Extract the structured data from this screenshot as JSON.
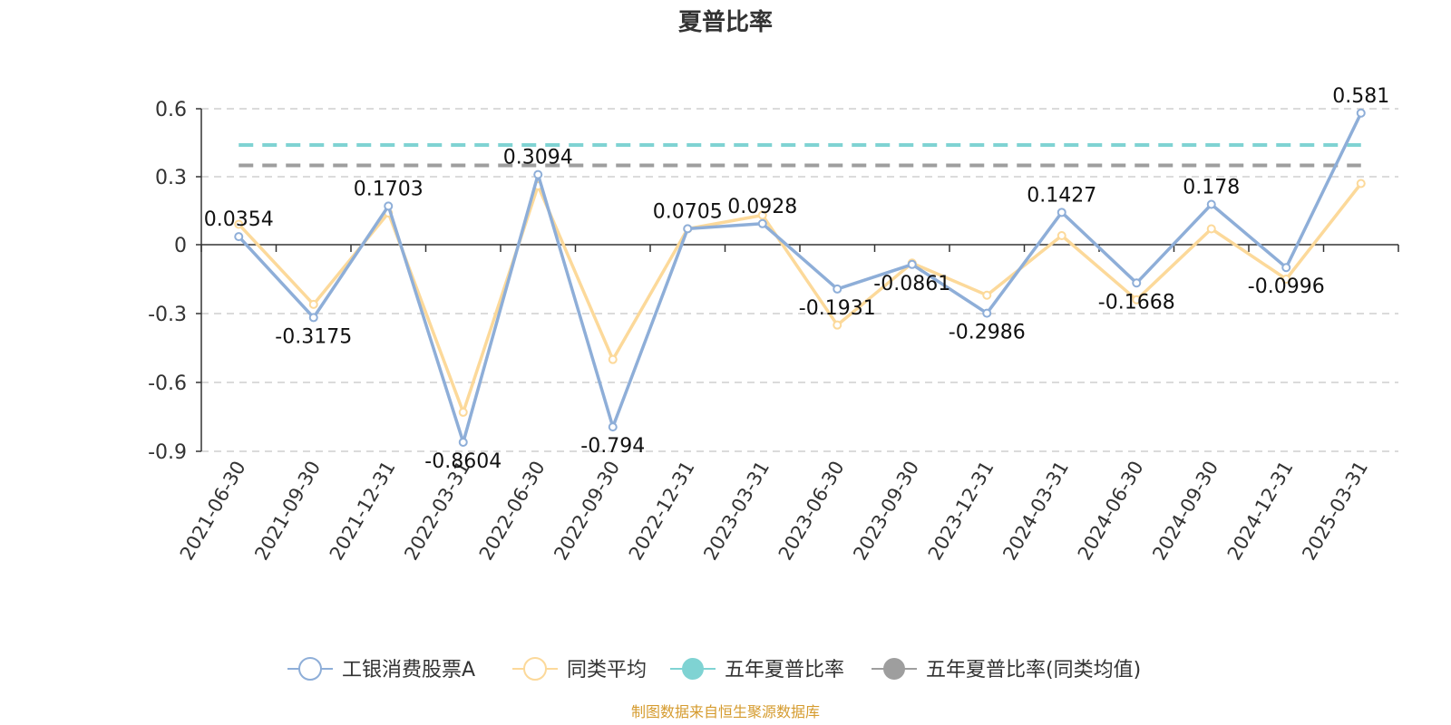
{
  "chart_data": {
    "type": "line",
    "title": "夏普比率",
    "xlabel": "",
    "ylabel": "",
    "categories": [
      "2021-06-30",
      "2021-09-30",
      "2021-12-31",
      "2022-03-31",
      "2022-06-30",
      "2022-09-30",
      "2022-12-31",
      "2023-03-31",
      "2023-06-30",
      "2023-09-30",
      "2023-12-31",
      "2024-03-31",
      "2024-06-30",
      "2024-09-30",
      "2024-12-31",
      "2025-03-31"
    ],
    "ylim": [
      -0.9,
      0.6
    ],
    "yticks": [
      "0.6",
      "0.3",
      "0",
      "-0.3",
      "-0.6",
      "-0.9"
    ],
    "ytick_values": [
      0.6,
      0.3,
      0,
      -0.3,
      -0.6,
      -0.9
    ],
    "grid": "horizontal dashed",
    "legend_position": "bottom",
    "series": [
      {
        "name": "工银消费股票A",
        "color": "#8eaed8",
        "values": [
          0.0354,
          -0.3175,
          0.1703,
          -0.8604,
          0.3094,
          -0.794,
          0.0705,
          0.0928,
          -0.1931,
          -0.0861,
          -0.2986,
          0.1427,
          -0.1668,
          0.178,
          -0.0996,
          0.581
        ],
        "labels": [
          "0.0354",
          "-0.3175",
          "0.1703",
          "-0.8604",
          "0.3094",
          "-0.794",
          "0.0705",
          "0.0928",
          "-0.1931",
          "-0.0861",
          "-0.2986",
          "0.1427",
          "-0.1668",
          "0.178",
          "-0.0996",
          "0.581"
        ]
      },
      {
        "name": "同类平均",
        "color": "#fcd99a",
        "values": [
          0.09,
          -0.26,
          0.14,
          -0.73,
          0.26,
          -0.5,
          0.07,
          0.13,
          -0.35,
          -0.08,
          -0.22,
          0.04,
          -0.24,
          0.07,
          -0.15,
          0.27
        ]
      },
      {
        "name": "五年夏普比率",
        "color": "#7fd3d3",
        "dashed": true,
        "value": 0.44
      },
      {
        "name": "五年夏普比率(同类均值)",
        "color": "#9e9e9e",
        "dashed": true,
        "value": 0.35
      }
    ]
  },
  "source": "制图数据来自恒生聚源数据库"
}
